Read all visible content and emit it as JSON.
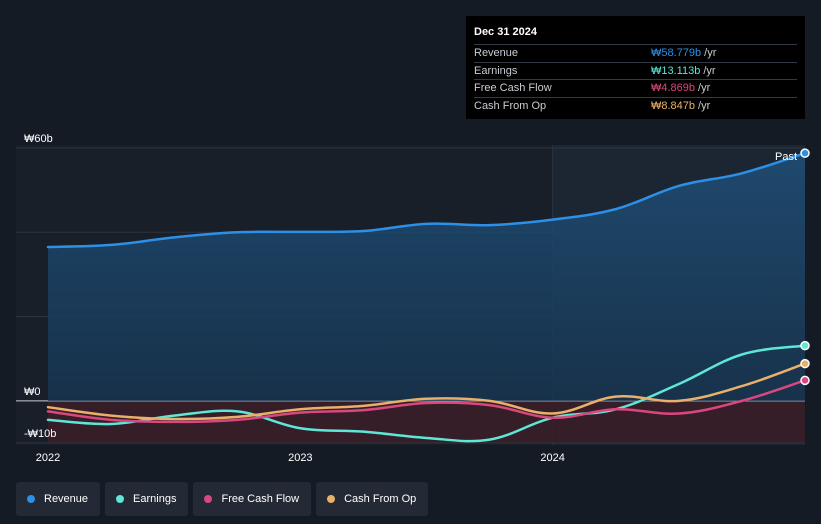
{
  "tooltip": {
    "date": "Dec 31 2024",
    "rows": [
      {
        "label": "Revenue",
        "value": "₩58.779b",
        "unit": "/yr",
        "color": "#2d8fe6"
      },
      {
        "label": "Earnings",
        "value": "₩13.113b",
        "unit": "/yr",
        "color": "#5ee6d6"
      },
      {
        "label": "Free Cash Flow",
        "value": "₩4.869b",
        "unit": "/yr",
        "color": "#d9477f"
      },
      {
        "label": "Cash From Op",
        "value": "₩8.847b",
        "unit": "/yr",
        "color": "#e8b06a"
      }
    ]
  },
  "legend": [
    {
      "label": "Revenue",
      "color": "#2d8fe6"
    },
    {
      "label": "Earnings",
      "color": "#5ee6d6"
    },
    {
      "label": "Free Cash Flow",
      "color": "#d9477f"
    },
    {
      "label": "Cash From Op",
      "color": "#e8b06a"
    }
  ],
  "chart_data": {
    "type": "area",
    "unit": "₩ billions",
    "y_tick_labels": [
      "₩60b",
      "₩0",
      "-₩10b"
    ],
    "y_range": [
      -10,
      60
    ],
    "x_tick_labels": [
      "2022",
      "2023",
      "2024"
    ],
    "x_ticks": [
      2022.0,
      2023.0,
      2024.0
    ],
    "x_range": [
      2021.9,
      2025.0
    ],
    "past_label": "Past",
    "past_start": 2024.0,
    "series": [
      {
        "name": "Revenue",
        "color": "#2d8fe6",
        "fill": true,
        "x": [
          2022.0,
          2022.25,
          2022.5,
          2022.75,
          2023.0,
          2023.25,
          2023.5,
          2023.75,
          2024.0,
          2024.25,
          2024.5,
          2024.75,
          2025.0
        ],
        "values": [
          36.5,
          37.0,
          38.8,
          40.0,
          40.1,
          40.3,
          42.0,
          41.7,
          43.0,
          45.5,
          51.0,
          54.0,
          58.779
        ]
      },
      {
        "name": "Earnings",
        "color": "#5ee6d6",
        "fill": false,
        "x": [
          2022.0,
          2022.25,
          2022.5,
          2022.75,
          2023.0,
          2023.25,
          2023.5,
          2023.75,
          2024.0,
          2024.25,
          2024.5,
          2024.75,
          2025.0
        ],
        "values": [
          -4.5,
          -5.5,
          -3.5,
          -2.5,
          -6.5,
          -7.3,
          -8.8,
          -9.2,
          -4.0,
          -2.0,
          4.0,
          11.0,
          13.113
        ]
      },
      {
        "name": "Free Cash Flow",
        "color": "#d9477f",
        "fill": false,
        "x": [
          2022.0,
          2022.25,
          2022.5,
          2022.75,
          2023.0,
          2023.25,
          2023.5,
          2023.75,
          2024.0,
          2024.25,
          2024.5,
          2024.75,
          2025.0
        ],
        "values": [
          -2.5,
          -4.5,
          -5.0,
          -4.5,
          -2.8,
          -2.2,
          -0.5,
          -1.0,
          -4.0,
          -2.0,
          -3.0,
          0.0,
          4.869
        ]
      },
      {
        "name": "Cash From Op",
        "color": "#e8b06a",
        "fill": false,
        "x": [
          2022.0,
          2022.25,
          2022.5,
          2022.75,
          2023.0,
          2023.25,
          2023.5,
          2023.75,
          2024.0,
          2024.25,
          2024.5,
          2024.75,
          2025.0
        ],
        "values": [
          -1.5,
          -3.5,
          -4.3,
          -3.8,
          -2.0,
          -1.2,
          0.5,
          0.0,
          -3.0,
          1.0,
          0.0,
          3.5,
          8.847
        ]
      }
    ]
  }
}
